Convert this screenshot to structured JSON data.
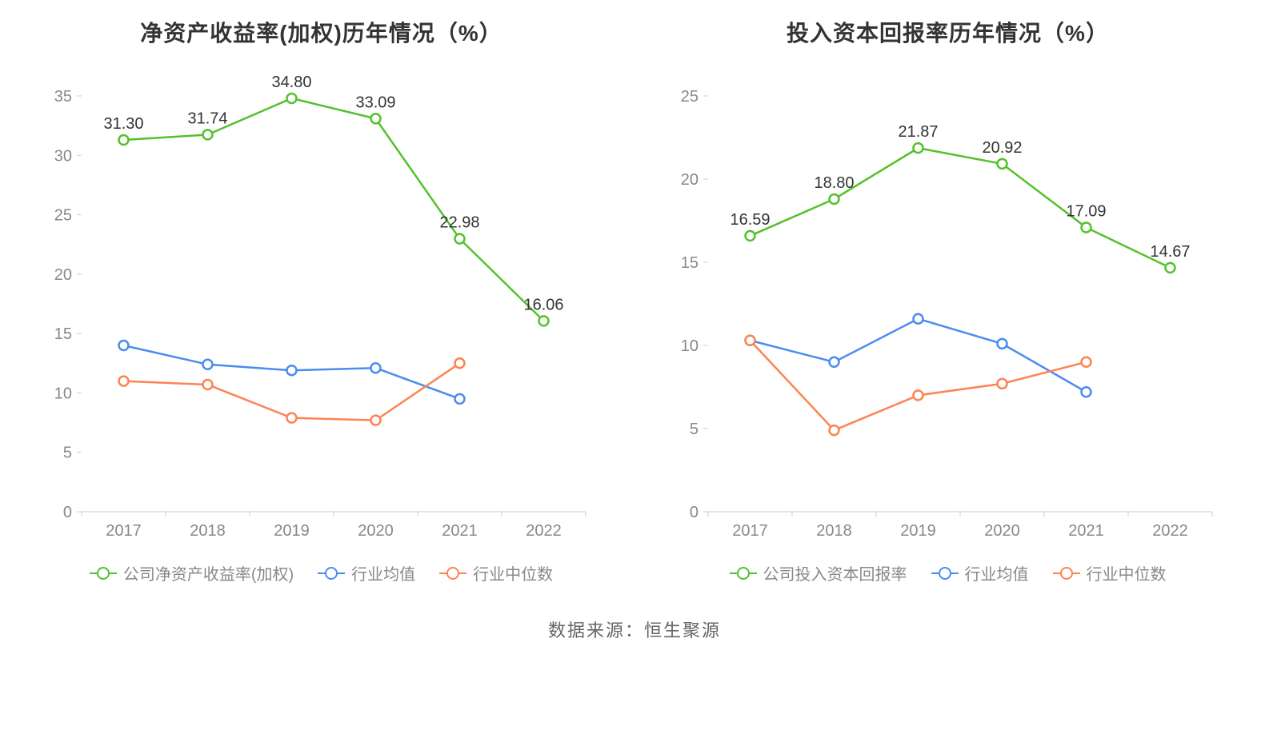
{
  "footer": "数据来源：恒生聚源",
  "colors": {
    "company": "#55c12e",
    "industry_mean": "#4a8cf0",
    "industry_median": "#fc8452",
    "axis_text": "#888888",
    "axis_line": "#cccccc",
    "value_label": "#333333",
    "background": "#ffffff"
  },
  "typography": {
    "title_fontsize": 28,
    "axis_fontsize": 20,
    "label_fontsize": 20,
    "legend_fontsize": 20
  },
  "charts": [
    {
      "id": "roe_chart",
      "type": "line",
      "title": "净资产收益率(加权)历年情况（%）",
      "x_categories": [
        "2017",
        "2018",
        "2019",
        "2020",
        "2021",
        "2022"
      ],
      "y_axis": {
        "min": 0,
        "max": 35,
        "step": 5
      },
      "line_width": 2.5,
      "marker_radius": 6,
      "marker_stroke_width": 2.5,
      "series": [
        {
          "key": "company",
          "name": "公司净资产收益率(加权)",
          "color_ref": "company",
          "values": [
            31.3,
            31.74,
            34.8,
            33.09,
            22.98,
            16.06
          ],
          "show_labels": true
        },
        {
          "key": "industry_mean",
          "name": "行业均值",
          "color_ref": "industry_mean",
          "values": [
            14.0,
            12.4,
            11.9,
            12.1,
            9.5,
            null
          ],
          "show_labels": false
        },
        {
          "key": "industry_median",
          "name": "行业中位数",
          "color_ref": "industry_median",
          "values": [
            11.0,
            10.7,
            7.9,
            7.7,
            12.5,
            null
          ],
          "show_labels": false
        }
      ]
    },
    {
      "id": "roic_chart",
      "type": "line",
      "title": "投入资本回报率历年情况（%）",
      "x_categories": [
        "2017",
        "2018",
        "2019",
        "2020",
        "2021",
        "2022"
      ],
      "y_axis": {
        "min": 0,
        "max": 25,
        "step": 5
      },
      "line_width": 2.5,
      "marker_radius": 6,
      "marker_stroke_width": 2.5,
      "series": [
        {
          "key": "company",
          "name": "公司投入资本回报率",
          "color_ref": "company",
          "values": [
            16.59,
            18.8,
            21.87,
            20.92,
            17.09,
            14.67
          ],
          "show_labels": true
        },
        {
          "key": "industry_mean",
          "name": "行业均值",
          "color_ref": "industry_mean",
          "values": [
            10.3,
            9.0,
            11.6,
            10.1,
            7.2,
            null
          ],
          "show_labels": false
        },
        {
          "key": "industry_median",
          "name": "行业中位数",
          "color_ref": "industry_median",
          "values": [
            10.3,
            4.9,
            7.0,
            7.7,
            9.0,
            null
          ],
          "show_labels": false
        }
      ]
    }
  ]
}
